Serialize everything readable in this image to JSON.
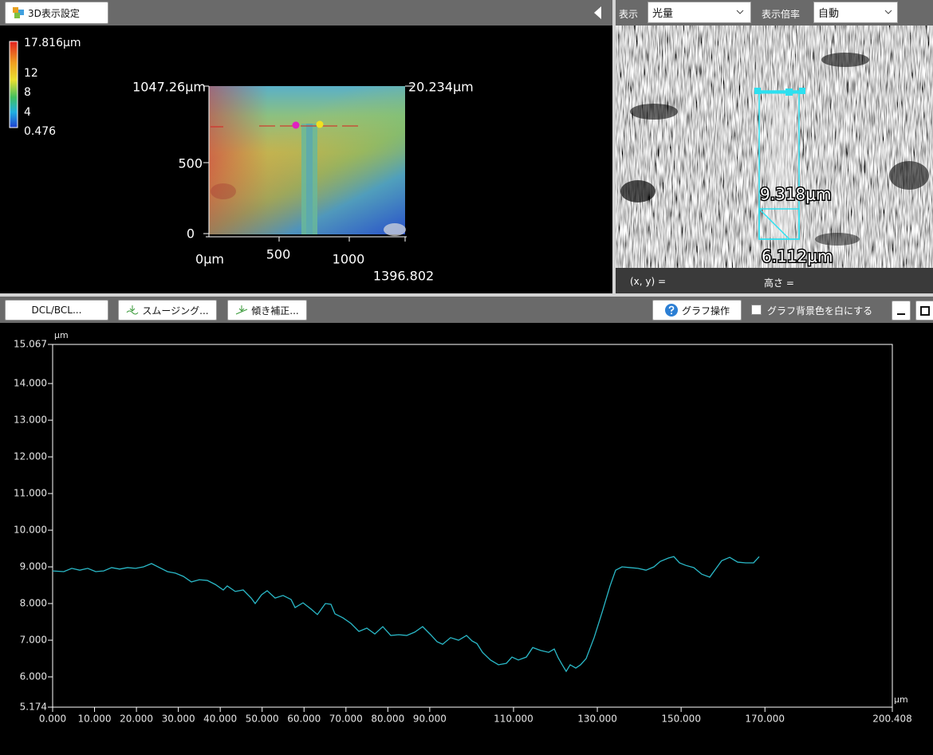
{
  "toolbar_3d": {
    "button": "3D表示設定"
  },
  "color_scale": {
    "max": "17.816μm",
    "ticks": [
      "12",
      "8",
      "4"
    ],
    "min": "0.476"
  },
  "map_axes": {
    "y_top": "1047.26μm",
    "y_mid": "500",
    "y_zero": "0",
    "x_zero": "0μm",
    "x_ticks": [
      "500",
      "1000"
    ],
    "x_max": "1396.802",
    "z_max": "20.234μm"
  },
  "image_panel": {
    "display_label": "表示",
    "display_value": "光量",
    "zoom_label": "表示倍率",
    "zoom_value": "自動",
    "measurements": [
      "9.318μm",
      "6.112μm"
    ],
    "status_xy": "(x, y) =",
    "status_height": "高さ ="
  },
  "profile_toolbar": {
    "buttons": [
      "DCL/BCL...",
      "スムージング...",
      "傾き補正..."
    ],
    "graph_ops": "グラフ操作",
    "checkbox": "グラフ背景色を白にする"
  },
  "chart_data": {
    "type": "line",
    "y_unit": "μm",
    "x_unit": "μm",
    "color": "#2ab9c8",
    "xlim": [
      0,
      200.408
    ],
    "ylim": [
      5.174,
      15.067
    ],
    "yticks": [
      5.174,
      {
        "value": 6,
        "label": "6.000"
      },
      {
        "value": 7,
        "label": "7.000"
      },
      {
        "value": 8,
        "label": "8.000"
      },
      {
        "value": 9,
        "label": "9.000"
      },
      {
        "value": 10,
        "label": "10.000"
      },
      {
        "value": 11,
        "label": "11.000"
      },
      {
        "value": 12,
        "label": "12.000"
      },
      {
        "value": 13,
        "label": "13.000"
      },
      {
        "value": 14,
        "label": "14.000"
      },
      15.067
    ],
    "xticks": [
      {
        "value": 0,
        "label": "0.000"
      },
      {
        "value": 10,
        "label": "10.000"
      },
      {
        "value": 20,
        "label": "20.000"
      },
      {
        "value": 30,
        "label": "30.000"
      },
      {
        "value": 40,
        "label": "40.000"
      },
      {
        "value": 50,
        "label": "50.000"
      },
      {
        "value": 60,
        "label": "60.000"
      },
      {
        "value": 70,
        "label": "70.000"
      },
      {
        "value": 80,
        "label": "80.000"
      },
      {
        "value": 90,
        "label": "90.000"
      },
      {
        "value": 110,
        "label": "110.000"
      },
      {
        "value": 130,
        "label": "130.000"
      },
      {
        "value": 150,
        "label": "150.000"
      },
      {
        "value": 170,
        "label": "170.000"
      },
      200.408
    ],
    "x": [
      0,
      2.66,
      4.57,
      6.47,
      8.38,
      10.28,
      12.18,
      14.08,
      15.99,
      17.89,
      19.79,
      21.7,
      23.6,
      25.5,
      27.41,
      29.31,
      31.21,
      33.12,
      35.02,
      36.92,
      38.83,
      40.73,
      41.68,
      43.59,
      45.49,
      47.39,
      48.34,
      49.87,
      51.2,
      53.1,
      55,
      56.91,
      57.86,
      59.76,
      61.67,
      63.19,
      65.09,
      66.43,
      67.38,
      69.28,
      71.18,
      73.09,
      74.99,
      76.89,
      78.8,
      80.7,
      82.6,
      84.51,
      86.41,
      88.31,
      90.22,
      91.74,
      93.07,
      94.98,
      96.88,
      98.78,
      100.11,
      101.26,
      102.59,
      104.49,
      106.4,
      108.3,
      109.63,
      111.15,
      113.06,
      114.58,
      116.48,
      118.39,
      119.72,
      120.67,
      121.62,
      122.57,
      123.52,
      124.86,
      126,
      127.33,
      129.23,
      131.14,
      133.04,
      134.37,
      135.89,
      137.8,
      139.7,
      141.61,
      143.51,
      145.03,
      146.94,
      148.27,
      149.6,
      151.12,
      153.03,
      154.93,
      156.83,
      158.74,
      159.69,
      161.59,
      163.5,
      165.4,
      167.3,
      168.63
    ],
    "values": [
      8.89,
      8.87,
      8.96,
      8.91,
      8.96,
      8.87,
      8.89,
      8.98,
      8.94,
      8.98,
      8.96,
      9.0,
      9.09,
      8.98,
      8.87,
      8.83,
      8.74,
      8.59,
      8.65,
      8.63,
      8.52,
      8.37,
      8.48,
      8.33,
      8.37,
      8.15,
      8.0,
      8.24,
      8.35,
      8.15,
      8.22,
      8.11,
      7.89,
      8.02,
      7.85,
      7.7,
      8.0,
      7.98,
      7.72,
      7.61,
      7.46,
      7.24,
      7.33,
      7.17,
      7.37,
      7.13,
      7.15,
      7.13,
      7.22,
      7.37,
      7.15,
      6.96,
      6.89,
      7.07,
      7.0,
      7.13,
      6.98,
      6.91,
      6.67,
      6.46,
      6.33,
      6.37,
      6.54,
      6.46,
      6.54,
      6.8,
      6.72,
      6.67,
      6.76,
      6.52,
      6.33,
      6.15,
      6.33,
      6.24,
      6.33,
      6.5,
      7.07,
      7.76,
      8.48,
      8.91,
      9.0,
      8.98,
      8.96,
      8.91,
      9.0,
      9.15,
      9.24,
      9.28,
      9.11,
      9.04,
      8.98,
      8.8,
      8.72,
      9.02,
      9.17,
      9.26,
      9.13,
      9.11,
      9.11,
      9.28
    ]
  }
}
